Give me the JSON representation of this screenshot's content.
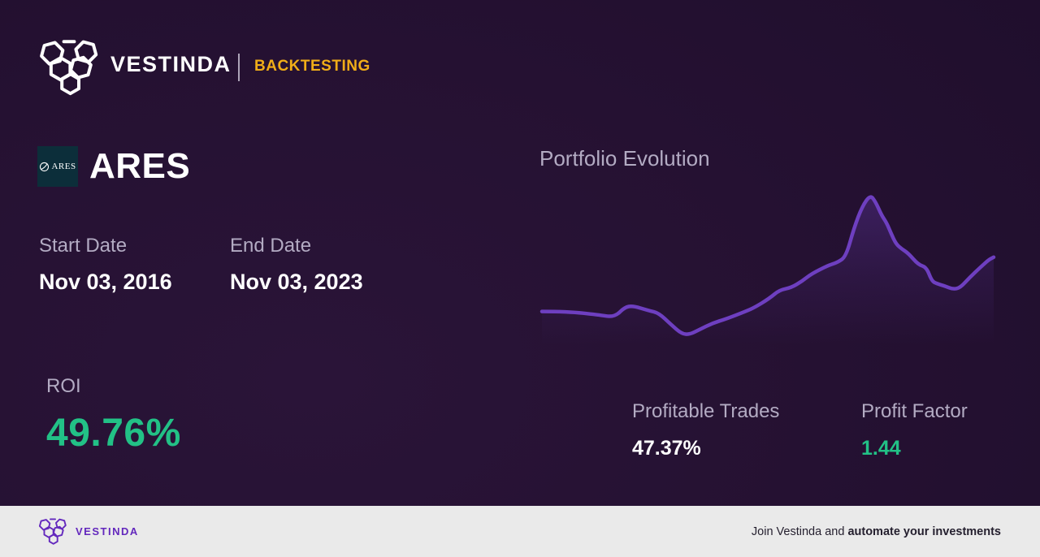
{
  "header": {
    "brand": "VESTINDA",
    "badge": "BACKTESTING"
  },
  "asset": {
    "symbol": "ARES",
    "logo_text": "ARES"
  },
  "dates": {
    "start_label": "Start Date",
    "start_value": "Nov 03, 2016",
    "end_label": "End Date",
    "end_value": "Nov 03, 2023"
  },
  "roi": {
    "label": "ROI",
    "value": "49.76%"
  },
  "stats": [
    {
      "label": "Profitable Trades",
      "value": "47.37%"
    },
    {
      "label": "Profit Factor",
      "value": "1.44"
    }
  ],
  "chart_data": {
    "type": "line",
    "title": "Portfolio Evolution",
    "xlabel": "",
    "ylabel": "",
    "x_axis": "time, Nov 03 2016 to Nov 03 2023 (percent of period)",
    "x_pct": [
      0,
      5.8,
      12.4,
      16.0,
      18.3,
      20.1,
      23.7,
      25.9,
      28.6,
      30.9,
      32.7,
      34.9,
      37.8,
      40.8,
      44.1,
      46.8,
      50.4,
      52.5,
      55.2,
      57.6,
      59.7,
      63.3,
      65.5,
      67.3,
      69.1,
      70.9,
      72.7,
      73.9,
      75.2,
      76.3,
      77.3,
      78.4,
      79.7,
      81.1,
      83.3,
      85.1,
      86.3,
      87.4,
      89.2,
      91.0,
      92.6,
      94.6,
      97.1,
      98.9,
      100
    ],
    "values": [
      100,
      100,
      97,
      94.7,
      103.8,
      105.3,
      100.8,
      98.5,
      87.9,
      79.6,
      78.9,
      83.4,
      89.4,
      93.2,
      98.5,
      103,
      112.1,
      119.6,
      121.9,
      127.9,
      134.7,
      142.2,
      145.2,
      150.5,
      176.9,
      196.5,
      207.1,
      200.3,
      188.2,
      181.4,
      171.6,
      161.8,
      157.3,
      153.5,
      143,
      140.7,
      127.9,
      125.6,
      123.4,
      120.4,
      121.9,
      130.9,
      140.7,
      147.5,
      149.8
    ],
    "value_note": "portfolio value indexed to 100 at start; end 149.8 matches ROI 49.76%",
    "ylim": [
      58,
      216
    ],
    "grid": false,
    "legend": false,
    "line_color": "#6e3fc0"
  },
  "footer": {
    "brand": "VESTINDA",
    "cta_regular": "Join Vestinda and ",
    "cta_bold": "automate your investments"
  },
  "colors": {
    "bg-dark": "#1f0e2c",
    "bg-mid": "#251132",
    "bg-light": "#2a1438",
    "gold": "#f0ad18",
    "muted-label": "#b3abc3",
    "green": "#22c186",
    "chart-line": "#6e3fc0",
    "ares-logo-bg": "#0c2e3a",
    "footer-bg": "#eaeaea",
    "footer-text": "#241f2e",
    "footer-purple": "#6328bd"
  }
}
